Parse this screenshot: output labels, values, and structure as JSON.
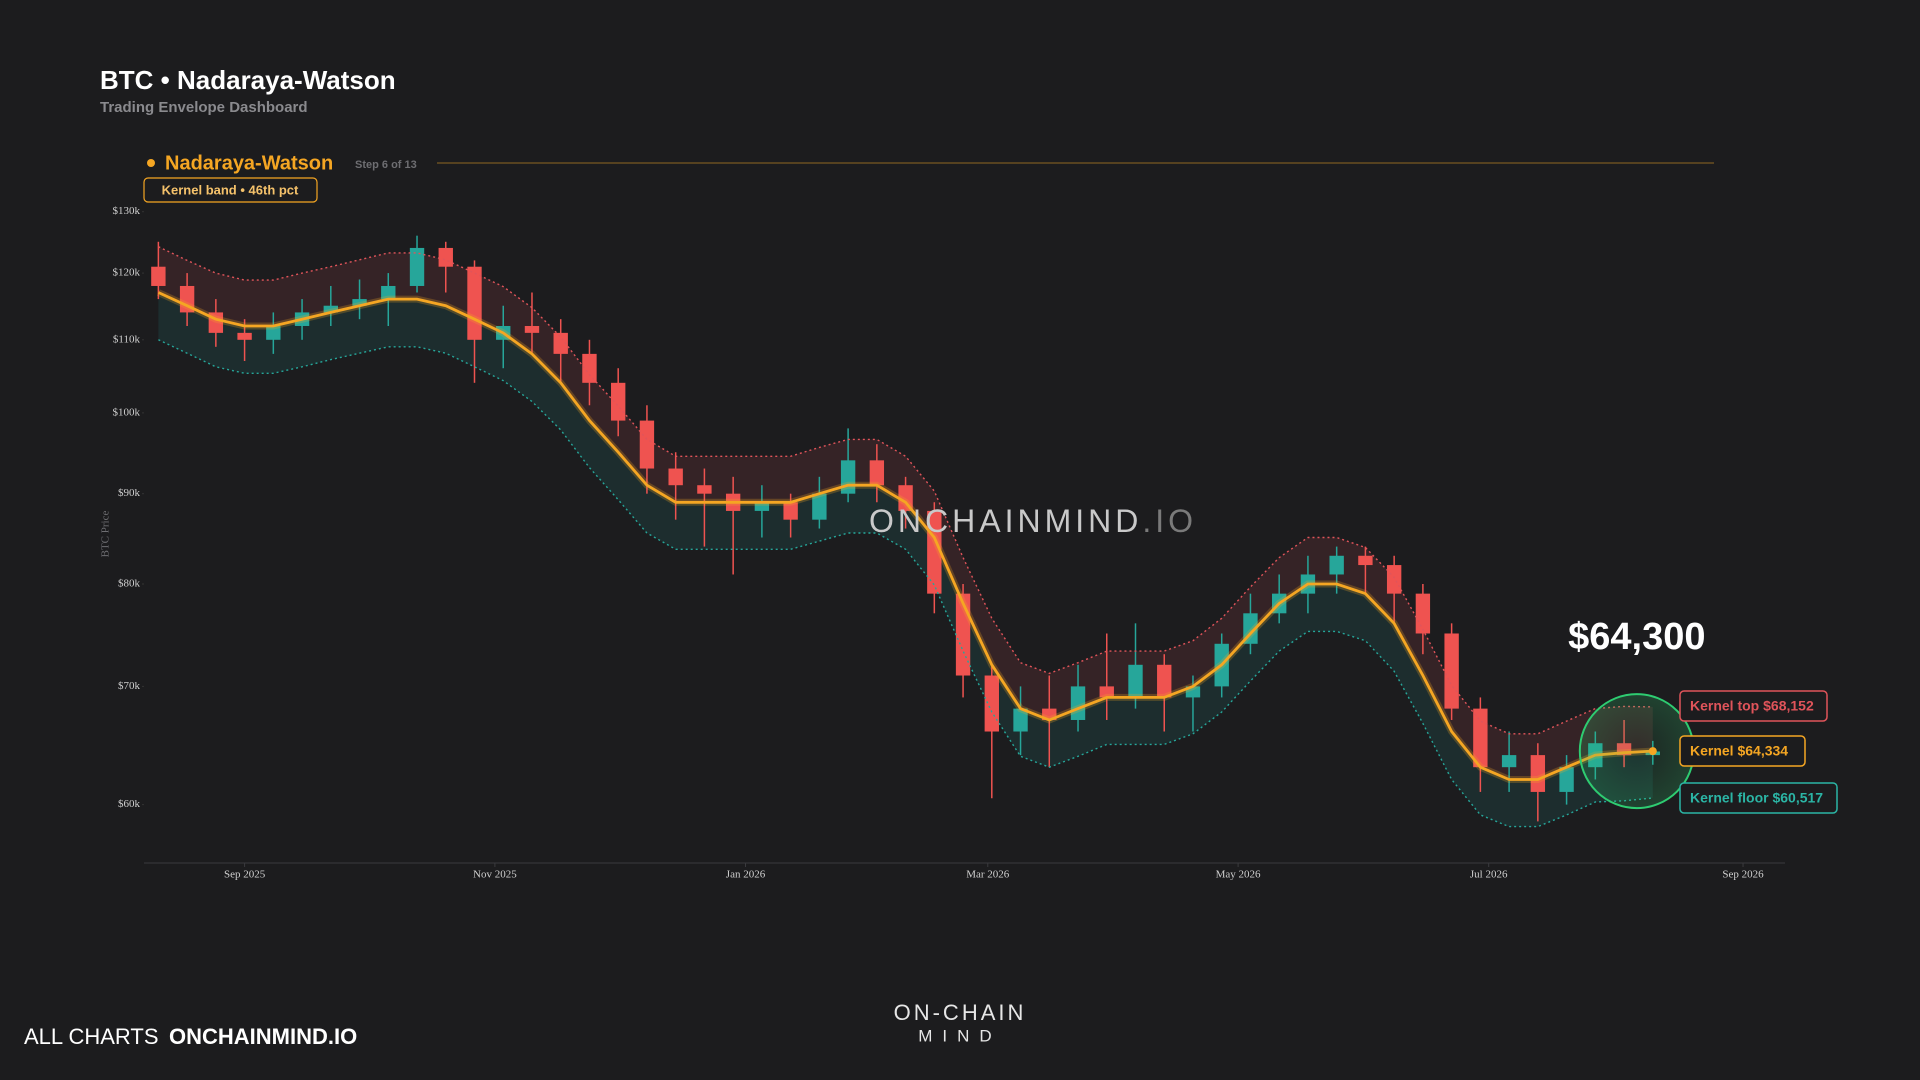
{
  "header": {
    "title": "BTC • Nadaraya-Watson",
    "subtitle": "Trading Envelope Dashboard"
  },
  "chart_data": {
    "type": "candlestick",
    "legend_title": "Nadaraya-Watson",
    "step": "Step 6 of 13",
    "badge": "Kernel band • 46th pct",
    "y_label": "BTC Price",
    "watermark": "ONCHAINMIND",
    "watermark_suffix": ".IO",
    "log": true,
    "ylim": [
      55600,
      132000
    ],
    "yticks": [
      {
        "value": 60000,
        "label": "$60k"
      },
      {
        "value": 70000,
        "label": "$70k"
      },
      {
        "value": 80000,
        "label": "$80k"
      },
      {
        "value": 90000,
        "label": "$90k"
      },
      {
        "value": 100000,
        "label": "$100k"
      },
      {
        "value": 110000,
        "label": "$110k"
      },
      {
        "value": 120000,
        "label": "$120k"
      },
      {
        "value": 130000,
        "label": "$130k"
      }
    ],
    "xlim": [
      -0.5,
      56.6
    ],
    "xticks": [
      {
        "value": 3,
        "label": "Sep 2025"
      },
      {
        "value": 11.71,
        "label": "Nov 2025"
      },
      {
        "value": 20.43,
        "label": "Jan 2026"
      },
      {
        "value": 28.86,
        "label": "Mar 2026"
      },
      {
        "value": 37.57,
        "label": "May 2026"
      },
      {
        "value": 46.29,
        "label": "Jul 2026"
      },
      {
        "value": 55.14,
        "label": "Sep 2026"
      }
    ],
    "up_color": "#26a69a",
    "down_color": "#ef5350",
    "open": [
      121000,
      118000,
      114000,
      111000,
      110000,
      112000,
      114000,
      115000,
      116000,
      118000,
      124000,
      121000,
      110000,
      112000,
      111000,
      108000,
      104000,
      99000,
      93000,
      91000,
      90000,
      88000,
      89000,
      87000,
      90000,
      94000,
      91000,
      88000,
      79000,
      71000,
      66000,
      68000,
      67000,
      70000,
      69000,
      72000,
      69000,
      70000,
      74000,
      77000,
      79000,
      81000,
      83000,
      82000,
      79000,
      75000,
      68000,
      63000,
      64000,
      61000,
      63000,
      65000,
      64000
    ],
    "high": [
      125000,
      120000,
      116000,
      113000,
      114000,
      116000,
      118000,
      119000,
      120000,
      126000,
      125000,
      122000,
      115000,
      117000,
      113000,
      110000,
      106000,
      101000,
      95000,
      93000,
      92000,
      91000,
      90000,
      92000,
      98000,
      96000,
      92000,
      89000,
      80000,
      72000,
      70000,
      71000,
      72000,
      75000,
      76000,
      73000,
      71000,
      75000,
      79000,
      81000,
      83000,
      84000,
      84000,
      83000,
      80000,
      76000,
      69000,
      66000,
      65000,
      64000,
      66000,
      67000,
      65200
    ],
    "low": [
      116000,
      112000,
      109000,
      107000,
      108000,
      110000,
      112000,
      113000,
      112000,
      117000,
      117000,
      104000,
      106000,
      108000,
      104000,
      101000,
      97000,
      90000,
      87000,
      84000,
      81000,
      85000,
      85000,
      86000,
      89000,
      89000,
      86000,
      77000,
      69000,
      60500,
      64000,
      63000,
      66000,
      67000,
      68000,
      66000,
      66000,
      69000,
      73000,
      76000,
      77000,
      79000,
      79000,
      76000,
      73000,
      67000,
      61000,
      61000,
      58700,
      60000,
      62000,
      63000,
      63200
    ],
    "close": [
      118000,
      114000,
      111000,
      110000,
      112000,
      114000,
      115000,
      116000,
      118000,
      124000,
      121000,
      110000,
      112000,
      111000,
      108000,
      104000,
      99000,
      93000,
      91000,
      90000,
      88000,
      89000,
      87000,
      90000,
      94000,
      91000,
      88000,
      79000,
      71000,
      66000,
      68000,
      67000,
      70000,
      69000,
      72000,
      69000,
      70000,
      74000,
      77000,
      79000,
      81000,
      83000,
      82000,
      79000,
      75000,
      68000,
      63000,
      64000,
      61000,
      63000,
      65000,
      64000,
      64300
    ],
    "last_price": {
      "value": 64300,
      "label": "$64,300"
    },
    "kernel": {
      "name": "Nadaraya-Watson",
      "color": "#f5a623",
      "label": "Kernel $64,334",
      "values": [
        117000,
        115000,
        113000,
        112000,
        112000,
        113000,
        114000,
        115000,
        116000,
        116000,
        115000,
        113000,
        111000,
        108000,
        104000,
        99000,
        95000,
        91000,
        89000,
        89000,
        89000,
        89000,
        89000,
        90000,
        91000,
        91000,
        89000,
        85000,
        78000,
        72000,
        68000,
        67000,
        68000,
        69000,
        69000,
        69000,
        70000,
        72000,
        75000,
        78000,
        80000,
        80000,
        79000,
        76000,
        71000,
        66000,
        63000,
        62000,
        62000,
        63000,
        64000,
        64200,
        64334
      ]
    },
    "kernel_top": {
      "color": "#e0545a",
      "label": "Kernel top $68,152",
      "values": [
        124200,
        122000,
        120000,
        118900,
        118900,
        120000,
        121000,
        122100,
        123200,
        123200,
        122100,
        120000,
        117900,
        114700,
        110400,
        105100,
        100900,
        96600,
        94500,
        94500,
        94500,
        94500,
        94500,
        95600,
        96600,
        96600,
        94500,
        90300,
        82800,
        76500,
        72200,
        71200,
        72200,
        73300,
        73300,
        73300,
        74300,
        76500,
        79700,
        82800,
        85000,
        85000,
        83900,
        80700,
        75400,
        70100,
        66900,
        65800,
        65800,
        66900,
        68000,
        68200,
        68152
      ]
    },
    "kernel_floor": {
      "color": "#26a69a",
      "label": "Kernel floor $60,517",
      "values": [
        110000,
        108100,
        106200,
        105300,
        105300,
        106200,
        107200,
        108100,
        109000,
        109000,
        108100,
        106200,
        104300,
        101500,
        97800,
        93100,
        89300,
        85500,
        83700,
        83700,
        83700,
        83700,
        83700,
        84600,
        85500,
        85500,
        83700,
        79900,
        73300,
        67700,
        63900,
        63000,
        63900,
        64900,
        64900,
        64900,
        65800,
        67700,
        70500,
        73300,
        75200,
        75200,
        74300,
        71400,
        66700,
        62000,
        59200,
        58300,
        58300,
        59200,
        60200,
        60300,
        60517
      ]
    }
  },
  "footer": {
    "all_charts": "ALL CHARTS",
    "site": "ONCHAINMIND.IO",
    "brand_top": "ON-CHAIN",
    "brand_bottom": "MIND"
  }
}
